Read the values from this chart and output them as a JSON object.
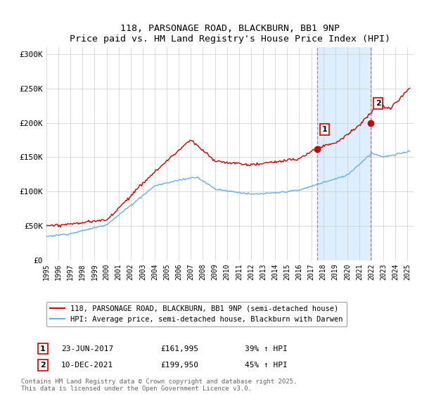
{
  "title": "118, PARSONAGE ROAD, BLACKBURN, BB1 9NP",
  "subtitle": "Price paid vs. HM Land Registry's House Price Index (HPI)",
  "legend1": "118, PARSONAGE ROAD, BLACKBURN, BB1 9NP (semi-detached house)",
  "legend2": "HPI: Average price, semi-detached house, Blackburn with Darwen",
  "marker1_date": "23-JUN-2017",
  "marker1_year": 2017.47,
  "marker1_price": 161995,
  "marker1_label": "39% ↑ HPI",
  "marker2_date": "10-DEC-2021",
  "marker2_year": 2021.94,
  "marker2_price": 199950,
  "marker2_label": "45% ↑ HPI",
  "footnote": "Contains HM Land Registry data © Crown copyright and database right 2025.\nThis data is licensed under the Open Government Licence v3.0.",
  "hpi_color": "#6aade4",
  "price_color": "#cc0000",
  "marker_color": "#cc0000",
  "vline_color": "#ff6666",
  "shade_color": "#ddeeff",
  "background_color": "#ffffff",
  "grid_color": "#cccccc",
  "ylim": [
    0,
    310000
  ],
  "xlim_start": 1995,
  "xlim_end": 2025.5
}
